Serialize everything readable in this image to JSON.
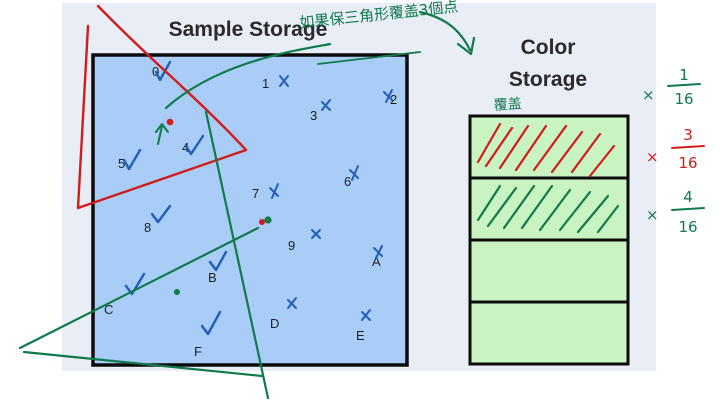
{
  "diagram": {
    "sample_storage_title": "Sample Storage",
    "color_storage_title_line1": "Color",
    "color_storage_title_line2": "Storage",
    "samples": [
      {
        "id": "s0",
        "label": "0",
        "mark": "check"
      },
      {
        "id": "s1",
        "label": "1",
        "mark": "x"
      },
      {
        "id": "s2",
        "label": "2",
        "mark": "x"
      },
      {
        "id": "s3",
        "label": "3",
        "mark": "x"
      },
      {
        "id": "s4",
        "label": "4",
        "mark": "check"
      },
      {
        "id": "s5",
        "label": "5",
        "mark": "check"
      },
      {
        "id": "s6",
        "label": "6",
        "mark": "x"
      },
      {
        "id": "s7",
        "label": "7",
        "mark": "x"
      },
      {
        "id": "s8",
        "label": "8",
        "mark": "check"
      },
      {
        "id": "s9",
        "label": "9",
        "mark": "x"
      },
      {
        "id": "sA",
        "label": "A",
        "mark": "x"
      },
      {
        "id": "sB",
        "label": "B",
        "mark": "check"
      },
      {
        "id": "sC",
        "label": "C",
        "mark": "check"
      },
      {
        "id": "sD",
        "label": "D",
        "mark": "x"
      },
      {
        "id": "sE",
        "label": "E",
        "mark": "x"
      },
      {
        "id": "sF",
        "label": "F",
        "mark": "check"
      }
    ],
    "color_slots": [
      {
        "hatch": "red"
      },
      {
        "hatch": "green"
      },
      {
        "hatch": "none"
      },
      {
        "hatch": "none"
      }
    ],
    "colors": {
      "sample_fill": "#a9cdf7",
      "color_slot_fill": "#c9f3c0",
      "outline": "#0b0b0b",
      "background": "#e9edf6",
      "ink_blue": "#1f5fb8",
      "ink_red": "#d21c1c",
      "ink_green": "#0f7a4a"
    }
  },
  "annotations": {
    "handwritten_note": "如果保三角形覆盖3個点",
    "storage_note": "覆盖",
    "fractions": [
      {
        "prefix": "×",
        "numerator": "1",
        "denominator": "16",
        "color": "green"
      },
      {
        "prefix": "×",
        "numerator": "3",
        "denominator": "16",
        "color": "red"
      },
      {
        "prefix": "×",
        "numerator": "4",
        "denominator": "16",
        "color": "green"
      }
    ]
  }
}
